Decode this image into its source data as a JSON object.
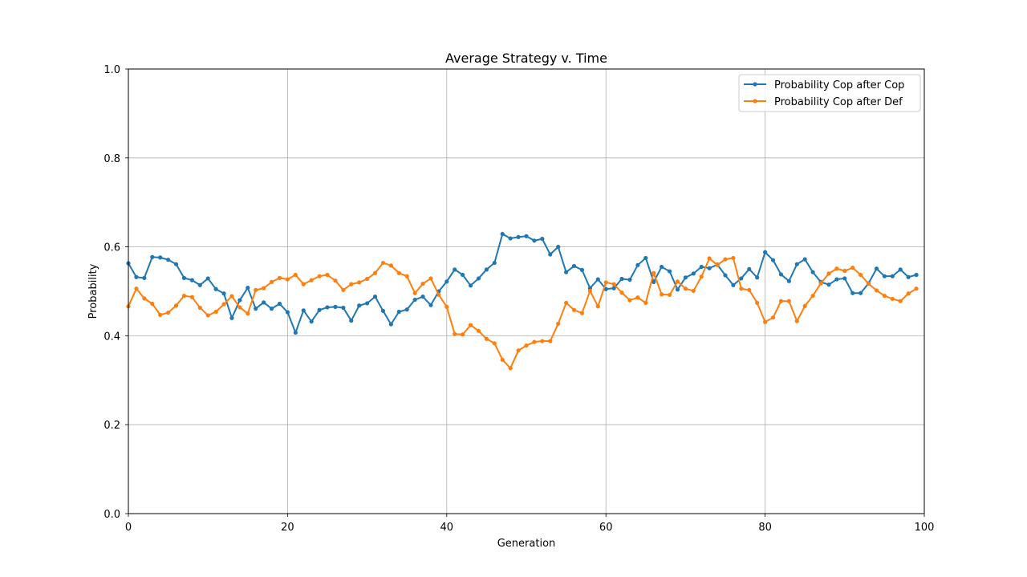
{
  "chart_data": {
    "type": "line",
    "title": "Average Strategy v. Time",
    "xlabel": "Generation",
    "ylabel": "Probability",
    "xlim": [
      0,
      100
    ],
    "ylim": [
      0,
      1
    ],
    "xticks": [
      0,
      20,
      40,
      60,
      80,
      100
    ],
    "xtick_labels": [
      "0",
      "20",
      "40",
      "60",
      "80",
      "100"
    ],
    "yticks": [
      0,
      0.2,
      0.4,
      0.6,
      0.8,
      1.0
    ],
    "ytick_labels": [
      "0.0",
      "0.2",
      "0.4",
      "0.6",
      "0.8",
      "1.0"
    ],
    "grid": true,
    "legend_position": "top-right",
    "series": [
      {
        "name": "Probability Cop after Cop",
        "color": "#1f77b4",
        "values": [
          0.563,
          0.532,
          0.53,
          0.577,
          0.576,
          0.571,
          0.561,
          0.53,
          0.525,
          0.514,
          0.529,
          0.505,
          0.495,
          0.44,
          0.48,
          0.508,
          0.461,
          0.475,
          0.461,
          0.472,
          0.453,
          0.407,
          0.457,
          0.432,
          0.458,
          0.464,
          0.465,
          0.463,
          0.434,
          0.468,
          0.473,
          0.488,
          0.456,
          0.426,
          0.454,
          0.459,
          0.481,
          0.488,
          0.469,
          0.5,
          0.522,
          0.549,
          0.537,
          0.513,
          0.529,
          0.549,
          0.564,
          0.629,
          0.619,
          0.622,
          0.624,
          0.614,
          0.618,
          0.583,
          0.6,
          0.543,
          0.557,
          0.548,
          0.507,
          0.527,
          0.505,
          0.507,
          0.528,
          0.526,
          0.559,
          0.575,
          0.521,
          0.555,
          0.545,
          0.504,
          0.531,
          0.54,
          0.555,
          0.552,
          0.56,
          0.536,
          0.514,
          0.529,
          0.55,
          0.531,
          0.588,
          0.57,
          0.538,
          0.523,
          0.561,
          0.572,
          0.543,
          0.521,
          0.515,
          0.527,
          0.529,
          0.496,
          0.496,
          0.518,
          0.551,
          0.534,
          0.534,
          0.549,
          0.532,
          0.537
        ]
      },
      {
        "name": "Probability Cop after Def",
        "color": "#ff7f0e",
        "values": [
          0.466,
          0.506,
          0.484,
          0.472,
          0.447,
          0.452,
          0.468,
          0.49,
          0.487,
          0.463,
          0.446,
          0.454,
          0.471,
          0.489,
          0.464,
          0.45,
          0.503,
          0.507,
          0.521,
          0.53,
          0.527,
          0.537,
          0.516,
          0.525,
          0.534,
          0.537,
          0.524,
          0.503,
          0.516,
          0.52,
          0.528,
          0.541,
          0.564,
          0.558,
          0.541,
          0.534,
          0.496,
          0.517,
          0.529,
          0.492,
          0.465,
          0.404,
          0.403,
          0.424,
          0.411,
          0.393,
          0.383,
          0.346,
          0.327,
          0.367,
          0.378,
          0.386,
          0.388,
          0.388,
          0.427,
          0.474,
          0.458,
          0.451,
          0.501,
          0.466,
          0.52,
          0.516,
          0.497,
          0.48,
          0.486,
          0.474,
          0.541,
          0.493,
          0.492,
          0.522,
          0.506,
          0.501,
          0.533,
          0.574,
          0.559,
          0.572,
          0.575,
          0.506,
          0.503,
          0.474,
          0.431,
          0.441,
          0.478,
          0.478,
          0.433,
          0.467,
          0.49,
          0.518,
          0.54,
          0.551,
          0.546,
          0.553,
          0.537,
          0.517,
          0.502,
          0.49,
          0.483,
          0.478,
          0.495,
          0.506
        ]
      }
    ]
  }
}
